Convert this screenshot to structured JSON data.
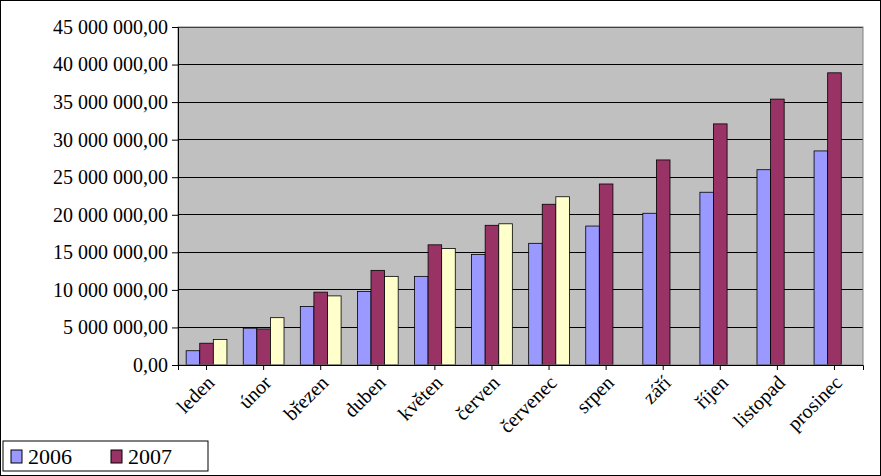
{
  "chart_data": {
    "type": "bar",
    "categories": [
      "leden",
      "únor",
      "březen",
      "duben",
      "květen",
      "červen",
      "červenec",
      "srpen",
      "září",
      "říjen",
      "listopad",
      "prosinec"
    ],
    "series": [
      {
        "name": "2006",
        "color": "#9999FF",
        "values": [
          1900000,
          4900000,
          7800000,
          9800000,
          11800000,
          14700000,
          16200000,
          18500000,
          20200000,
          23000000,
          26000000,
          28500000
        ]
      },
      {
        "name": "2007",
        "color": "#993366",
        "values": [
          2900000,
          4800000,
          9700000,
          12600000,
          16000000,
          18600000,
          21400000,
          24100000,
          27300000,
          32100000,
          35400000,
          38900000
        ]
      },
      {
        "color": "#FFFFCC",
        "values": [
          3400000,
          6300000,
          9200000,
          11800000,
          15500000,
          18800000,
          22400000,
          null,
          null,
          null,
          null,
          null
        ]
      }
    ],
    "ylim": [
      0,
      45000000
    ],
    "yticks": [
      {
        "value": 0,
        "label": "0,00"
      },
      {
        "value": 5000000,
        "label": "5 000 000,00"
      },
      {
        "value": 10000000,
        "label": "10 000 000,00"
      },
      {
        "value": 15000000,
        "label": "15 000 000,00"
      },
      {
        "value": 20000000,
        "label": "20 000 000,00"
      },
      {
        "value": 25000000,
        "label": "25 000 000,00"
      },
      {
        "value": 30000000,
        "label": "30 000 000,00"
      },
      {
        "value": 35000000,
        "label": "35 000 000,00"
      },
      {
        "value": 40000000,
        "label": "40 000 000,00"
      },
      {
        "value": 45000000,
        "label": "45 000 000,00"
      }
    ],
    "grid": true,
    "legend": "bottom-left"
  }
}
